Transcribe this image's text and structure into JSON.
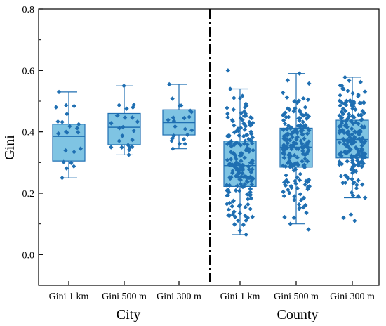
{
  "chart_data": {
    "type": "box",
    "ylabel": "Gini",
    "ylim": [
      -0.1,
      0.8
    ],
    "yticks": [
      "0.0",
      "0.2",
      "0.4",
      "0.6",
      "0.8"
    ],
    "groups": [
      "City",
      "County"
    ],
    "categories": [
      "Gini 1 km",
      "Gini 500 m",
      "Gini 300 m",
      "Gini 1 km",
      "Gini 500 m",
      "Gini 300 m"
    ],
    "category_group": [
      0,
      0,
      0,
      1,
      1,
      1
    ],
    "boxes": [
      {
        "min": 0.25,
        "q1": 0.305,
        "median": 0.385,
        "q3": 0.425,
        "max": 0.53,
        "n": 20
      },
      {
        "min": 0.325,
        "q1": 0.358,
        "median": 0.415,
        "q3": 0.46,
        "max": 0.55,
        "n": 22
      },
      {
        "min": 0.345,
        "q1": 0.39,
        "median": 0.43,
        "q3": 0.472,
        "max": 0.555,
        "n": 20
      },
      {
        "min": 0.065,
        "q1": 0.222,
        "median": 0.29,
        "q3": 0.37,
        "max": 0.54,
        "n": 190,
        "outliers": [
          0.6
        ]
      },
      {
        "min": 0.1,
        "q1": 0.285,
        "median": 0.35,
        "q3": 0.412,
        "max": 0.59,
        "n": 190,
        "outliers": [
          0.082
        ]
      },
      {
        "min": 0.185,
        "q1": 0.315,
        "median": 0.375,
        "q3": 0.438,
        "max": 0.578,
        "n": 190,
        "outliers": [
          0.11,
          0.12,
          0.13
        ]
      }
    ],
    "separator": "dash-dot line between City and County",
    "colors": {
      "box_fill": "#7fc4e3",
      "box_stroke": "#1f6fb2",
      "points": "#1f6fb2",
      "axis": "#000000"
    },
    "grid": false,
    "legend": "none"
  }
}
